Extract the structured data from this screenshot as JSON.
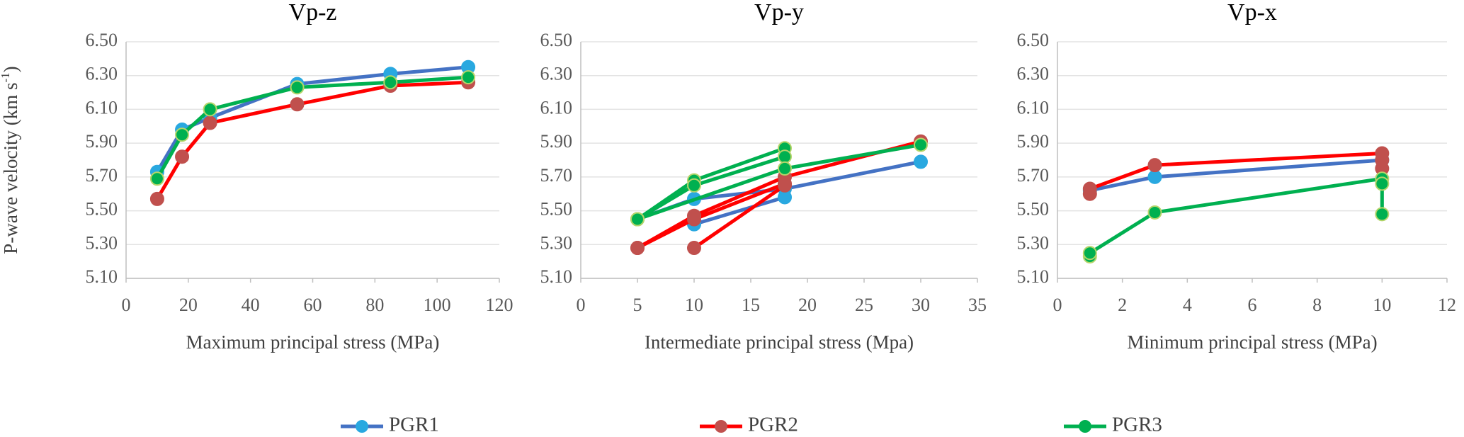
{
  "chart_data": [
    {
      "type": "line",
      "title": "Vp-z",
      "x_label": "Maximum principal stress (MPa)",
      "y_label": "P-wave velocity (km s",
      "y_label_sup": "-1",
      "y_label_end": ")",
      "xlim": [
        0,
        120
      ],
      "xticks": [
        0,
        20,
        40,
        60,
        80,
        100,
        120
      ],
      "ylim": [
        5.1,
        6.5
      ],
      "yticks": [
        {
          "value": 5.1,
          "label": "5.10"
        },
        {
          "value": 5.3,
          "label": "5.30"
        },
        {
          "value": 5.5,
          "label": "5.50"
        },
        {
          "value": 5.7,
          "label": "5.70"
        },
        {
          "value": 5.9,
          "label": "5.90"
        },
        {
          "value": 6.1,
          "label": "6.10"
        },
        {
          "value": 6.3,
          "label": "6.30"
        },
        {
          "value": 6.5,
          "label": "6.50"
        }
      ],
      "series": [
        {
          "name": "PGR1",
          "color": "#4472c4",
          "marker_color": "#29a8e0",
          "x": [
            10,
            18,
            27,
            55,
            85,
            110
          ],
          "values": [
            5.73,
            5.98,
            6.05,
            6.25,
            6.31,
            6.35
          ]
        },
        {
          "name": "PGR2",
          "color": "#ff0000",
          "marker_color": "#c0504d",
          "x": [
            10,
            18,
            27,
            55,
            85,
            110
          ],
          "values": [
            5.57,
            5.82,
            6.02,
            6.13,
            6.24,
            6.26
          ]
        },
        {
          "name": "PGR3",
          "color": "#00b050",
          "marker_color": "#00b050",
          "x": [
            10,
            18,
            27,
            55,
            85,
            110
          ],
          "values": [
            5.69,
            5.95,
            6.1,
            6.23,
            6.26,
            6.29
          ]
        }
      ]
    },
    {
      "type": "line",
      "title": "Vp-y",
      "x_label": "Intermediate principal stress (Mpa)",
      "xlim": [
        0,
        35
      ],
      "xticks": [
        0,
        5,
        10,
        15,
        20,
        25,
        30,
        35
      ],
      "ylim": [
        5.1,
        6.5
      ],
      "yticks": [
        {
          "value": 5.1,
          "label": "5.10"
        },
        {
          "value": 5.3,
          "label": "5.30"
        },
        {
          "value": 5.5,
          "label": "5.50"
        },
        {
          "value": 5.7,
          "label": "5.70"
        },
        {
          "value": 5.9,
          "label": "5.90"
        },
        {
          "value": 6.1,
          "label": "6.10"
        },
        {
          "value": 6.3,
          "label": "6.30"
        },
        {
          "value": 6.5,
          "label": "6.50"
        }
      ],
      "series": [
        {
          "color": "#4472c4",
          "marker_color": "#29a8e0",
          "x": [
            5,
            10,
            18,
            30,
            null,
            18,
            10
          ],
          "values": [
            5.45,
            5.57,
            5.63,
            5.79,
            null,
            5.58,
            5.42
          ]
        },
        {
          "color": "#ff0000",
          "marker_color": "#c0504d",
          "x": [
            5,
            10,
            18,
            30,
            null,
            18,
            10,
            5,
            null,
            10,
            18
          ],
          "values": [
            5.28,
            5.47,
            5.7,
            5.91,
            null,
            5.66,
            5.45,
            5.28,
            null,
            5.28,
            5.65
          ]
        },
        {
          "color": "#00b050",
          "marker_color": "#00b050",
          "x": [
            5,
            10,
            18,
            null,
            18,
            10,
            5,
            null,
            5,
            18,
            30
          ],
          "values": [
            5.45,
            5.68,
            5.87,
            null,
            5.82,
            5.65,
            5.45,
            null,
            5.45,
            5.75,
            5.89
          ]
        }
      ]
    },
    {
      "type": "line",
      "title": "Vp-x",
      "x_label": "Minimum principal stress (MPa)",
      "xlim": [
        0,
        12
      ],
      "xticks": [
        0,
        2,
        4,
        6,
        8,
        10,
        12
      ],
      "ylim": [
        5.1,
        6.5
      ],
      "yticks": [
        {
          "value": 5.1,
          "label": "5.10"
        },
        {
          "value": 5.3,
          "label": "5.30"
        },
        {
          "value": 5.5,
          "label": "5.50"
        },
        {
          "value": 5.7,
          "label": "5.70"
        },
        {
          "value": 5.9,
          "label": "5.90"
        },
        {
          "value": 6.1,
          "label": "6.10"
        },
        {
          "value": 6.3,
          "label": "6.30"
        },
        {
          "value": 6.5,
          "label": "6.50"
        }
      ],
      "series": [
        {
          "color": "#4472c4",
          "marker_color": "#29a8e0",
          "x": [
            1,
            3,
            10
          ],
          "values": [
            5.62,
            5.7,
            5.8
          ]
        },
        {
          "color": "#ff0000",
          "marker_color": "#c0504d",
          "x": [
            1,
            1,
            3,
            10,
            10,
            10
          ],
          "values": [
            5.6,
            5.63,
            5.77,
            5.84,
            5.8,
            5.75
          ]
        },
        {
          "color": "#00b050",
          "marker_color": "#00b050",
          "x": [
            1,
            1,
            3,
            10,
            10,
            10
          ],
          "values": [
            5.23,
            5.25,
            5.49,
            5.69,
            5.66,
            5.48
          ]
        }
      ]
    }
  ]
}
